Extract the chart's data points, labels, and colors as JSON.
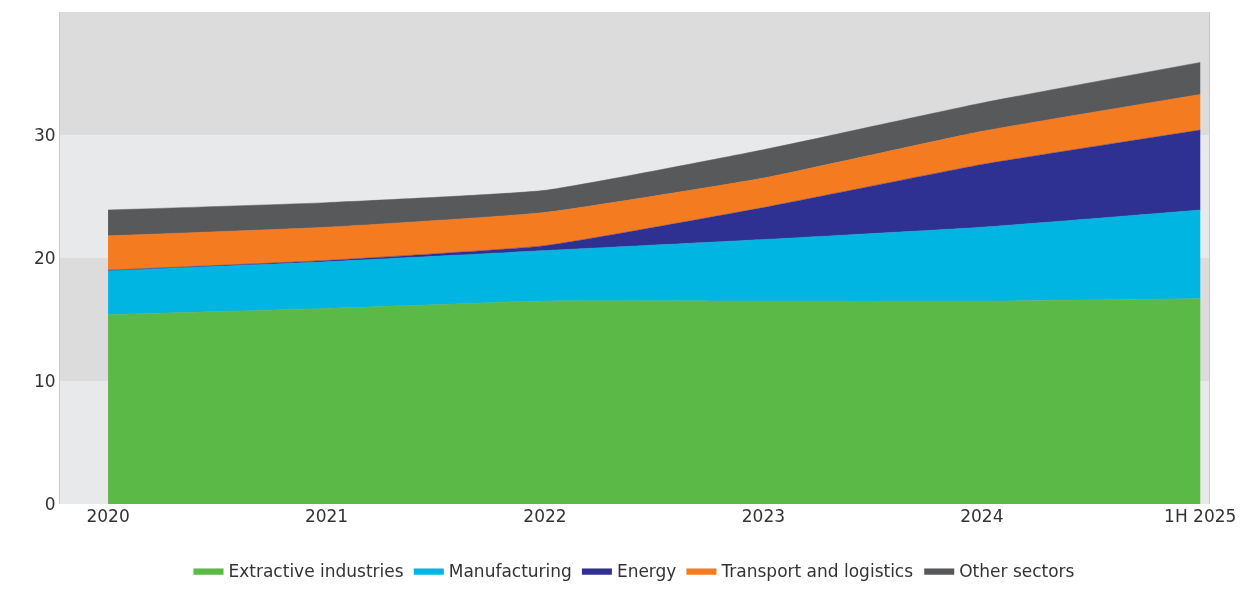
{
  "chart_data": {
    "type": "area",
    "stacked": true,
    "categories": [
      "2020",
      "2021",
      "2022",
      "2023",
      "2024",
      "1H 2025"
    ],
    "series": [
      {
        "name": "Extractive industries",
        "color": "#5ab947",
        "values": [
          15.4,
          15.9,
          16.5,
          16.5,
          16.5,
          16.7
        ]
      },
      {
        "name": "Manufacturing",
        "color": "#00b5e2",
        "values": [
          3.6,
          3.8,
          4.1,
          5.0,
          6.0,
          7.2
        ]
      },
      {
        "name": "Energy",
        "color": "#2e3192",
        "values": [
          0,
          0.1,
          0.4,
          2.6,
          5.1,
          6.5
        ]
      },
      {
        "name": "Transport and logistics",
        "color": "#f47b20",
        "values": [
          2.8,
          2.7,
          2.7,
          2.4,
          2.7,
          2.9
        ]
      },
      {
        "name": "Other sectors",
        "color": "#58595b",
        "values": [
          2.1,
          2.0,
          1.8,
          2.3,
          2.3,
          2.6
        ]
      }
    ],
    "ylim": [
      0,
      40
    ],
    "yticks": [
      0,
      10,
      20,
      30
    ],
    "legend": "bottom",
    "bands": [
      {
        "axis": "y",
        "from": 0,
        "to": 10,
        "color": "#e8e9eb"
      },
      {
        "axis": "y",
        "from": 10,
        "to": 20,
        "color": "#dcdcdc"
      },
      {
        "axis": "y",
        "from": 20,
        "to": 30,
        "color": "#e8e9eb"
      },
      {
        "axis": "y",
        "from": 30,
        "to": 40,
        "color": "#dcdcdc"
      }
    ]
  }
}
